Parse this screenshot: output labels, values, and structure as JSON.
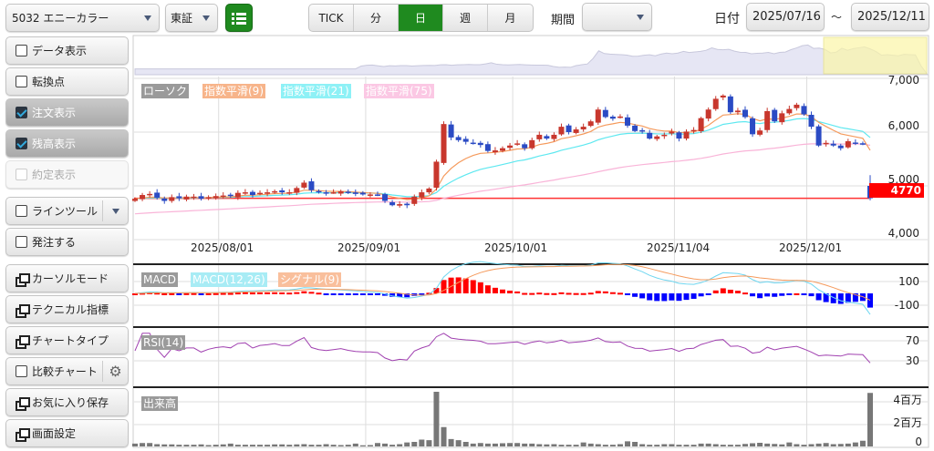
{
  "header": {
    "symbol": "5032 エニーカラー",
    "market": "東証",
    "periods": [
      "TICK",
      "分",
      "日",
      "週",
      "月"
    ],
    "active_period": "日",
    "period_label": "期間",
    "period_value": "",
    "date_label": "日付",
    "date_from": "2025/07/16",
    "tilde": "～",
    "date_to": "2025/12/11"
  },
  "sidebar": [
    {
      "label": "データ表示",
      "type": "checkbox",
      "checked": false
    },
    {
      "label": "転換点",
      "type": "checkbox",
      "checked": false
    },
    {
      "label": "注文表示",
      "type": "checkbox",
      "checked": true
    },
    {
      "label": "残高表示",
      "type": "checkbox",
      "checked": true
    },
    {
      "label": "約定表示",
      "type": "checkbox",
      "checked": false,
      "disabled": true
    },
    {
      "label": "ラインツール",
      "type": "checkbox",
      "checked": false
    },
    {
      "label": "発注する",
      "type": "checkbox",
      "checked": false
    },
    {
      "label": "カーソルモード",
      "type": "window"
    },
    {
      "label": "テクニカル指標",
      "type": "window"
    },
    {
      "label": "チャートタイプ",
      "type": "window"
    },
    {
      "label": "比較チャート",
      "type": "checkbox",
      "checked": false
    },
    {
      "label": "お気に入り保存",
      "type": "window"
    },
    {
      "label": "画面設定",
      "type": "window"
    }
  ],
  "legend": {
    "candle": "ローソク",
    "ema9": "指数平滑(9)",
    "ema21": "指数平滑(21)",
    "ema75": "指数平滑(75)",
    "macd": "MACD",
    "macd_line": "MACD(12,26)",
    "signal": "シグナル(9)",
    "rsi": "RSI(14)",
    "volume": "出来高"
  },
  "axes": {
    "price": [
      "7,000",
      "6,000",
      "5,000",
      "4,000"
    ],
    "macd": [
      "100",
      "-100"
    ],
    "rsi": [
      "70",
      "30"
    ],
    "volume": [
      "4百万",
      "2百万",
      "0"
    ],
    "dates": [
      "2025/08/01",
      "2025/09/01",
      "2025/10/01",
      "2025/11/04",
      "2025/12/01"
    ],
    "current_price": "4770"
  },
  "colors": {
    "up": "#c8372d",
    "down": "#2b4bc4",
    "ema9": "#f59a5c",
    "ema21": "#5ee8f0",
    "ema75": "#f9b4d8",
    "rsi": "#a040b0",
    "active": "#1f8a1f"
  },
  "chart_data": {
    "type": "candlestick",
    "closes": [
      4760,
      4830,
      4850,
      4780,
      4720,
      4790,
      4770,
      4800,
      4800,
      4760,
      4790,
      4810,
      4820,
      4810,
      4870,
      4880,
      4830,
      4870,
      4880,
      4900,
      4880,
      4880,
      4960,
      5060,
      4920,
      4880,
      4860,
      4880,
      4900,
      4870,
      4850,
      4840,
      4840,
      4830,
      4720,
      4640,
      4660,
      4640,
      4800,
      4880,
      4950,
      5450,
      6150,
      5900,
      5850,
      5820,
      5800,
      5760,
      5650,
      5660,
      5700,
      5750,
      5790,
      5700,
      5850,
      5950,
      5880,
      5950,
      6100,
      6000,
      6050,
      6100,
      6200,
      6420,
      6280,
      6250,
      6290,
      6120,
      6020,
      6010,
      5880,
      5920,
      5950,
      6010,
      5880,
      6010,
      6040,
      6260,
      6420,
      6620,
      6680,
      6370,
      6400,
      6280,
      5960,
      6030,
      6390,
      6200,
      6350,
      6430,
      6510,
      6330,
      6100,
      5750,
      5800,
      5750,
      5700,
      5830,
      5800,
      5780,
      4770
    ],
    "volumes_man": [
      25,
      30,
      30,
      20,
      18,
      18,
      15,
      15,
      15,
      18,
      12,
      15,
      18,
      25,
      15,
      15,
      15,
      15,
      15,
      18,
      18,
      15,
      18,
      20,
      15,
      15,
      20,
      15,
      12,
      15,
      25,
      10,
      12,
      30,
      25,
      15,
      20,
      35,
      40,
      60,
      55,
      480,
      170,
      65,
      55,
      40,
      25,
      30,
      25,
      25,
      28,
      30,
      30,
      25,
      25,
      20,
      18,
      20,
      15,
      15,
      15,
      35,
      25,
      20,
      15,
      15,
      20,
      45,
      40,
      20,
      15,
      15,
      20,
      20,
      15,
      15,
      15,
      25,
      25,
      20,
      15,
      15,
      15,
      22,
      28,
      32,
      25,
      22,
      18,
      35,
      20,
      15,
      20,
      25,
      30,
      20,
      22,
      25,
      35,
      50,
      470
    ],
    "date_tick_index": [
      12,
      32,
      52,
      74,
      92
    ]
  }
}
